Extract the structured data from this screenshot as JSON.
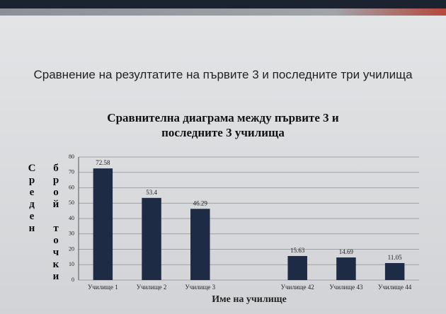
{
  "slide_title": "Сравнение на резултатите на първите 3 и последните три училища",
  "chart_data": {
    "type": "bar",
    "title": "Сравнителна диаграма между първите 3 и последните 3 училища",
    "categories": [
      "Училище 1",
      "Училище 2",
      "Училище 3",
      null,
      "Училище 42",
      "Училище 43",
      "Училище 44"
    ],
    "values": [
      72.58,
      53.4,
      46.29,
      null,
      15.63,
      14.69,
      11.05
    ],
    "color": "#1d2b45",
    "ylim": [
      0,
      80
    ],
    "yticks": [
      0,
      10,
      20,
      30,
      40,
      50,
      60,
      70,
      80
    ],
    "grid": true,
    "xlabel": "Име на училище",
    "ylabel": "Среден брой точки"
  }
}
